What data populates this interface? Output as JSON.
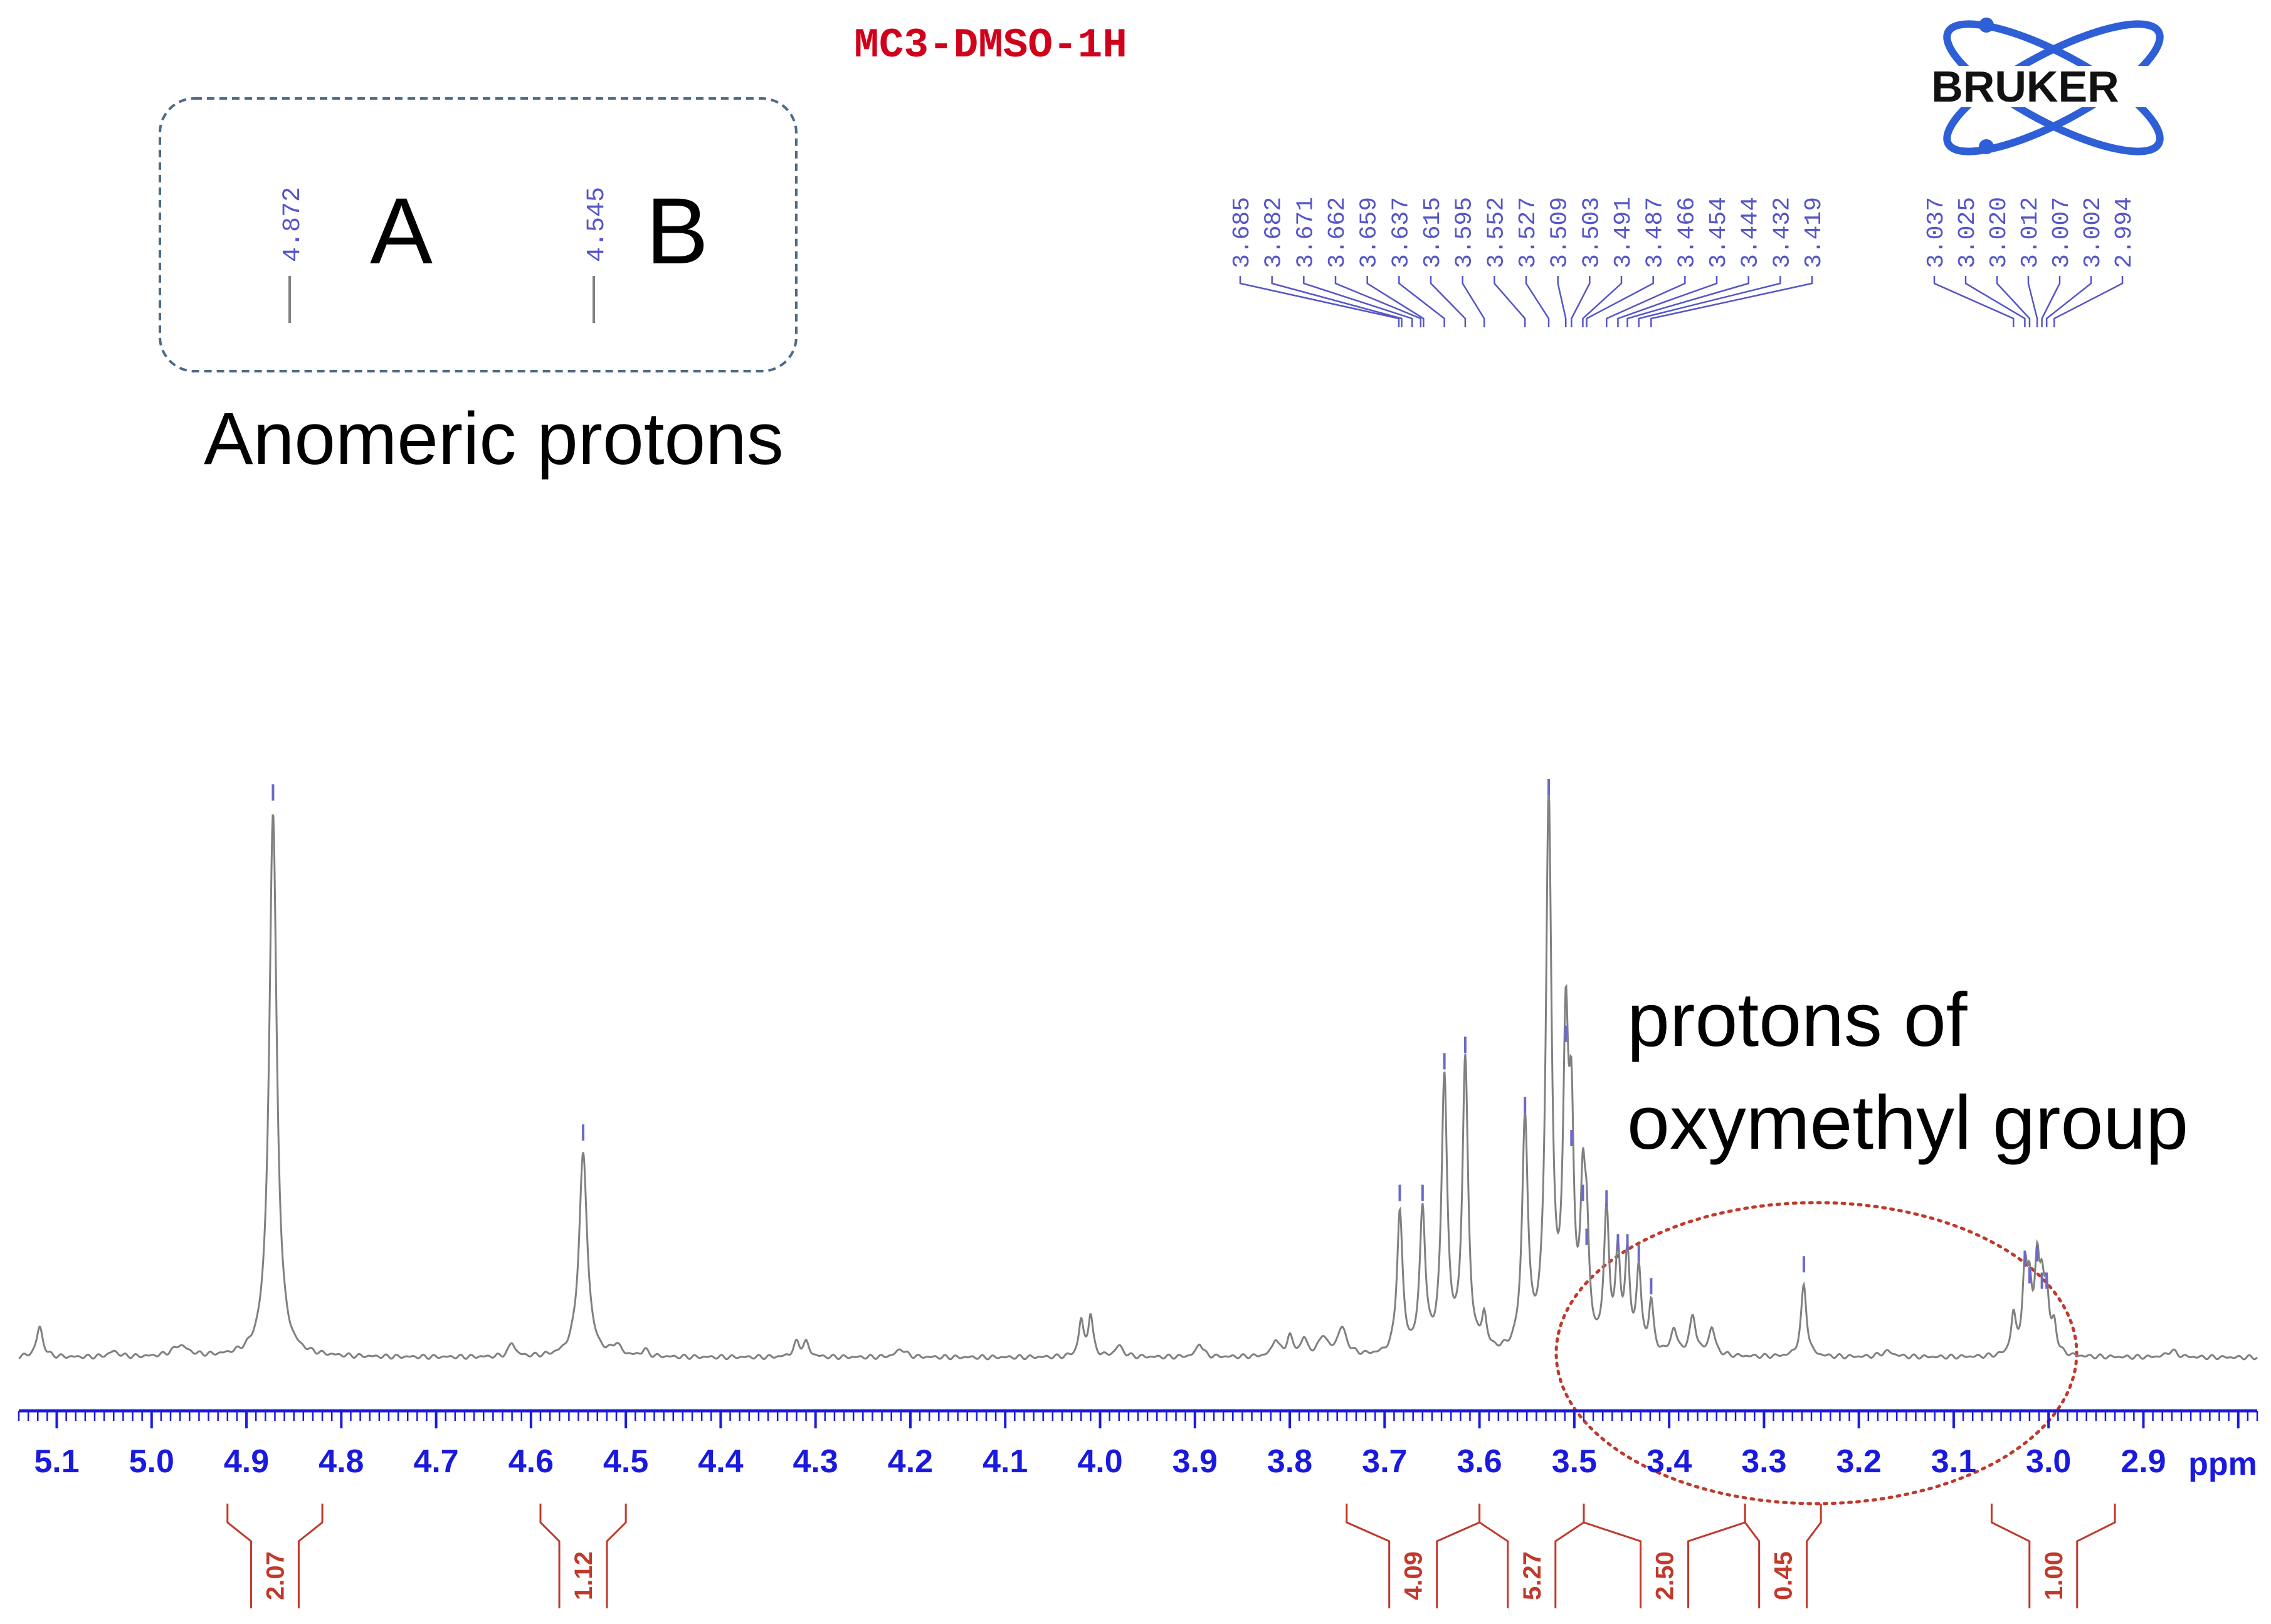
{
  "title": "MC3-DMSO-1H",
  "logo_text": "BRUKER",
  "annotations": {
    "anomeric_a_shift": "4.872",
    "anomeric_a_letter": "A",
    "anomeric_b_shift": "4.545",
    "anomeric_b_letter": "B",
    "anomeric_caption": "Anomeric protons",
    "oxymethyl_line1": "protons of",
    "oxymethyl_line2": "oxymethyl group"
  },
  "colors": {
    "title": "#d0021b",
    "axis": "#1a1adf",
    "peak_labels": "#5555c8",
    "spectrum": "#808080",
    "integrals": "#c0392b",
    "box": "#4a6b8a",
    "ellipse": "#c0392b"
  },
  "chart_data": {
    "type": "line",
    "title": "MC3-DMSO-1H",
    "xlabel": "ppm",
    "ylabel": "",
    "x_reversed": true,
    "xlim": [
      5.14,
      2.78
    ],
    "ylim": [
      0,
      1.0
    ],
    "x_ticks": [
      "5.1",
      "5.0",
      "4.9",
      "4.8",
      "4.7",
      "4.6",
      "4.5",
      "4.4",
      "4.3",
      "4.2",
      "4.1",
      "4.0",
      "3.9",
      "3.8",
      "3.7",
      "3.6",
      "3.5",
      "3.4",
      "3.3",
      "3.2",
      "3.1",
      "3.0",
      "2.9"
    ],
    "peak_labels_left": [
      "3.685",
      "3.682",
      "3.671",
      "3.662",
      "3.659",
      "3.637",
      "3.615",
      "3.595",
      "3.552",
      "3.527",
      "3.509",
      "3.503",
      "3.491",
      "3.487",
      "3.466",
      "3.454",
      "3.444",
      "3.432",
      "3.419"
    ],
    "peak_labels_right": [
      "3.037",
      "3.025",
      "3.020",
      "3.012",
      "3.007",
      "3.002",
      "2.994"
    ],
    "integrals": [
      {
        "from": 4.92,
        "to": 4.82,
        "value": "2.07"
      },
      {
        "from": 4.59,
        "to": 4.5,
        "value": "1.12"
      },
      {
        "from": 3.74,
        "to": 3.6,
        "value": "4.09"
      },
      {
        "from": 3.6,
        "to": 3.49,
        "value": "5.27"
      },
      {
        "from": 3.49,
        "to": 3.32,
        "value": "2.50"
      },
      {
        "from": 3.32,
        "to": 3.24,
        "value": "0.45"
      },
      {
        "from": 3.06,
        "to": 2.93,
        "value": "1.00"
      }
    ],
    "peaks": [
      {
        "x": 5.118,
        "h": 0.055,
        "w": 0.004
      },
      {
        "x": 5.04,
        "h": 0.01,
        "w": 0.006
      },
      {
        "x": 4.97,
        "h": 0.02,
        "w": 0.01
      },
      {
        "x": 4.872,
        "h": 0.99,
        "w": 0.0048
      },
      {
        "x": 4.62,
        "h": 0.025,
        "w": 0.004
      },
      {
        "x": 4.545,
        "h": 0.37,
        "w": 0.0052
      },
      {
        "x": 4.51,
        "h": 0.02,
        "w": 0.005
      },
      {
        "x": 4.48,
        "h": 0.012,
        "w": 0.004
      },
      {
        "x": 4.32,
        "h": 0.025,
        "w": 0.004
      },
      {
        "x": 4.31,
        "h": 0.025,
        "w": 0.004
      },
      {
        "x": 4.21,
        "h": 0.015,
        "w": 0.006
      },
      {
        "x": 4.02,
        "h": 0.065,
        "w": 0.003
      },
      {
        "x": 4.01,
        "h": 0.075,
        "w": 0.003
      },
      {
        "x": 3.98,
        "h": 0.02,
        "w": 0.005
      },
      {
        "x": 3.895,
        "h": 0.025,
        "w": 0.004
      },
      {
        "x": 3.815,
        "h": 0.03,
        "w": 0.004
      },
      {
        "x": 3.8,
        "h": 0.035,
        "w": 0.004
      },
      {
        "x": 3.785,
        "h": 0.03,
        "w": 0.004
      },
      {
        "x": 3.765,
        "h": 0.035,
        "w": 0.005
      },
      {
        "x": 3.745,
        "h": 0.05,
        "w": 0.006
      },
      {
        "x": 3.684,
        "h": 0.26,
        "w": 0.0035
      },
      {
        "x": 3.66,
        "h": 0.26,
        "w": 0.0035
      },
      {
        "x": 3.637,
        "h": 0.5,
        "w": 0.0036
      },
      {
        "x": 3.615,
        "h": 0.53,
        "w": 0.0036
      },
      {
        "x": 3.595,
        "h": 0.06,
        "w": 0.003
      },
      {
        "x": 3.552,
        "h": 0.42,
        "w": 0.0036
      },
      {
        "x": 3.527,
        "h": 1.0,
        "w": 0.0036
      },
      {
        "x": 3.509,
        "h": 0.55,
        "w": 0.0034
      },
      {
        "x": 3.503,
        "h": 0.36,
        "w": 0.003
      },
      {
        "x": 3.491,
        "h": 0.26,
        "w": 0.003
      },
      {
        "x": 3.487,
        "h": 0.18,
        "w": 0.003
      },
      {
        "x": 3.466,
        "h": 0.25,
        "w": 0.0033
      },
      {
        "x": 3.454,
        "h": 0.17,
        "w": 0.003
      },
      {
        "x": 3.444,
        "h": 0.17,
        "w": 0.003
      },
      {
        "x": 3.432,
        "h": 0.15,
        "w": 0.003
      },
      {
        "x": 3.419,
        "h": 0.09,
        "w": 0.003
      },
      {
        "x": 3.395,
        "h": 0.045,
        "w": 0.004
      },
      {
        "x": 3.375,
        "h": 0.07,
        "w": 0.004
      },
      {
        "x": 3.355,
        "h": 0.05,
        "w": 0.004
      },
      {
        "x": 3.258,
        "h": 0.13,
        "w": 0.0035
      },
      {
        "x": 3.17,
        "h": 0.01,
        "w": 0.008
      },
      {
        "x": 3.037,
        "h": 0.07,
        "w": 0.003
      },
      {
        "x": 3.025,
        "h": 0.14,
        "w": 0.003
      },
      {
        "x": 3.02,
        "h": 0.11,
        "w": 0.003
      },
      {
        "x": 3.012,
        "h": 0.15,
        "w": 0.003
      },
      {
        "x": 3.007,
        "h": 0.1,
        "w": 0.003
      },
      {
        "x": 3.002,
        "h": 0.1,
        "w": 0.003
      },
      {
        "x": 2.994,
        "h": 0.05,
        "w": 0.003
      },
      {
        "x": 2.87,
        "h": 0.012,
        "w": 0.006
      }
    ]
  }
}
